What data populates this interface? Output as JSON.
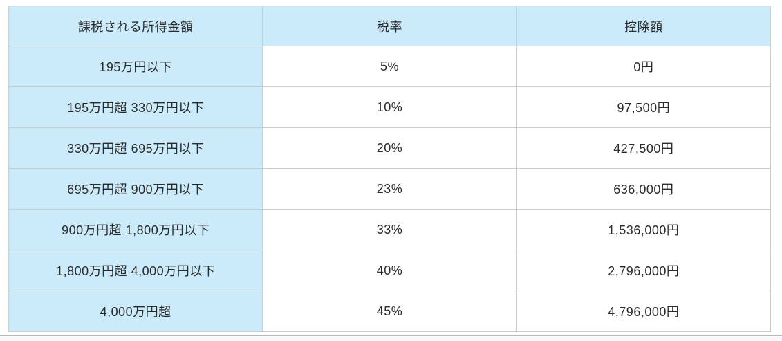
{
  "style": {
    "header_bg": "#cbeafa",
    "first_column_bg": "#cbeafa",
    "body_cell_bg": "#ffffff",
    "border_color": "#c6ced2",
    "text_color": "#2b2b2b",
    "page_bg": "#ffffff",
    "bottom_divider_color": "#bcbcbc"
  },
  "chart_data": {
    "type": "table",
    "columns": [
      "課税される所得金額",
      "税率",
      "控除額"
    ],
    "rows": [
      {
        "income": "195万円以下",
        "rate": "5%",
        "deduction": "0円"
      },
      {
        "income": "195万円超 330万円以下",
        "rate": "10%",
        "deduction": "97,500円"
      },
      {
        "income": "330万円超 695万円以下",
        "rate": "20%",
        "deduction": "427,500円"
      },
      {
        "income": "695万円超 900万円以下",
        "rate": "23%",
        "deduction": "636,000円"
      },
      {
        "income": "900万円超 1,800万円以下",
        "rate": "33%",
        "deduction": "1,536,000円"
      },
      {
        "income": "1,800万円超 4,000万円以下",
        "rate": "40%",
        "deduction": "2,796,000円"
      },
      {
        "income": "4,000万円超",
        "rate": "45%",
        "deduction": "4,796,000円"
      }
    ]
  }
}
